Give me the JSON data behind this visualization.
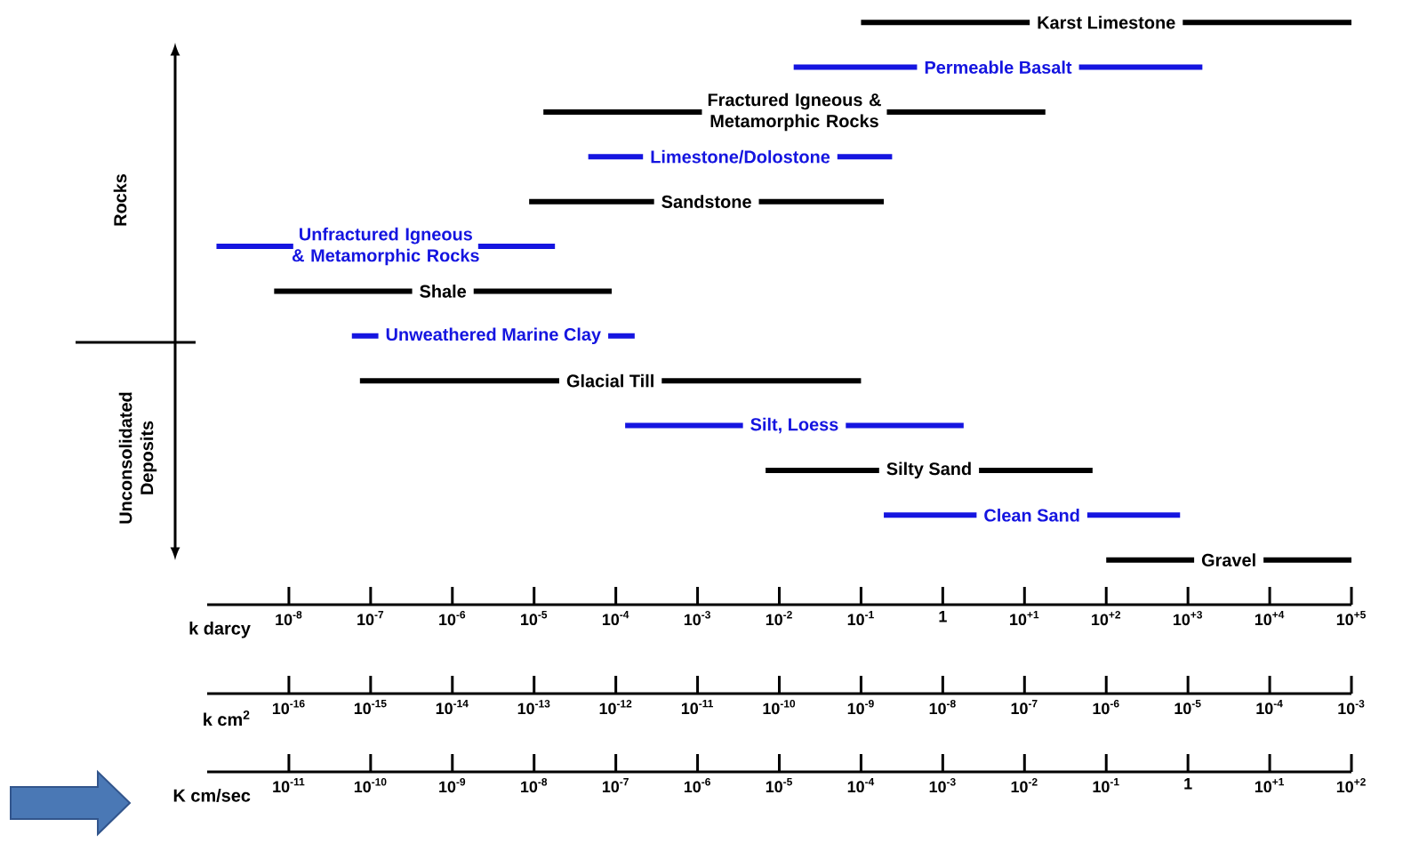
{
  "chart_data": {
    "type": "bar",
    "orientation": "horizontal",
    "log": "x",
    "categories": [
      "Karst Limestone",
      "Permeable Basalt",
      "Fractured Igneous & Metamorphic Rocks",
      "Limestone/Dolostone",
      "Sandstone",
      "Unfractured Igneous & Metamorphic Rocks",
      "Shale",
      "Unweathered Marine Clay",
      "Glacial Till",
      "Silt, Loess",
      "Silty Sand",
      "Clean Sand",
      "Gravel"
    ],
    "base": [
      0.1,
      0.015,
      1.3e-05,
      4.6e-05,
      8.7e-06,
      1.3e-09,
      6.6e-09,
      5.9e-08,
      7.4e-08,
      0.00013,
      0.0068,
      0.19,
      100
    ],
    "values": [
      99999.9,
      1500,
      18,
      0.24,
      0.19,
      1.8e-05,
      8.9e-05,
      0.00017,
      0.1,
      1.8,
      68,
      800,
      99900
    ],
    "colors": [
      "#000000",
      "#1515e0",
      "#000000",
      "#1515e0",
      "#000000",
      "#1515e0",
      "#000000",
      "#1515e0",
      "#000000",
      "#1515e0",
      "#000000",
      "#1515e0",
      "#000000"
    ],
    "xlabel": "k darcy",
    "xlim": [
      1e-09,
      100000.0
    ],
    "xticks": [
      {
        "value": 1e-08,
        "label": "10$^{-8}$"
      },
      {
        "value": 1e-07,
        "label": "10$^{-7}$"
      },
      {
        "value": 1e-06,
        "label": "10$^{-6}$"
      },
      {
        "value": 1e-05,
        "label": "10$^{-5}$"
      },
      {
        "value": 0.0001,
        "label": "10$^{-4}$"
      },
      {
        "value": 0.001,
        "label": "10$^{-3}$"
      },
      {
        "value": 0.01,
        "label": "10$^{-2}$"
      },
      {
        "value": 0.1,
        "label": "10$^{-1}$"
      },
      1,
      {
        "value": 10,
        "label": "10$^{+1}$"
      },
      {
        "value": 100,
        "label": "10$^{+2}$"
      },
      {
        "value": 1000,
        "label": "10$^{+3}$"
      },
      {
        "value": 10000,
        "label": "10$^{+4}$"
      },
      {
        "value": 100000,
        "label": "10$^{+5}$"
      }
    ],
    "annotations": [
      "Rocks",
      "Unconsolidated Deposits",
      "k cm$^{2}$",
      "10$^{-16}$",
      "10$^{-15}$",
      "10$^{-14}$",
      "10$^{-13}$",
      "10$^{-12}$",
      "10$^{-11}$",
      "10$^{-10}$",
      "10$^{-9}$",
      "10$^{-8}$",
      "10$^{-7}$",
      "10$^{-6}$",
      "10$^{-5}$",
      "10$^{-4}$",
      "10$^{-3}$",
      "K cm/sec",
      "10$^{-11}$",
      "10$^{-10}$",
      "10$^{-9}$",
      "10$^{-8}$",
      "10$^{-7}$",
      "10$^{-6}$",
      "10$^{-5}$",
      "10$^{-4}$",
      "10$^{-3}$",
      "10$^{-2}$",
      "10$^{-1}$",
      "1",
      "10$^{+1}$",
      "10$^{+2}$"
    ]
  }
}
